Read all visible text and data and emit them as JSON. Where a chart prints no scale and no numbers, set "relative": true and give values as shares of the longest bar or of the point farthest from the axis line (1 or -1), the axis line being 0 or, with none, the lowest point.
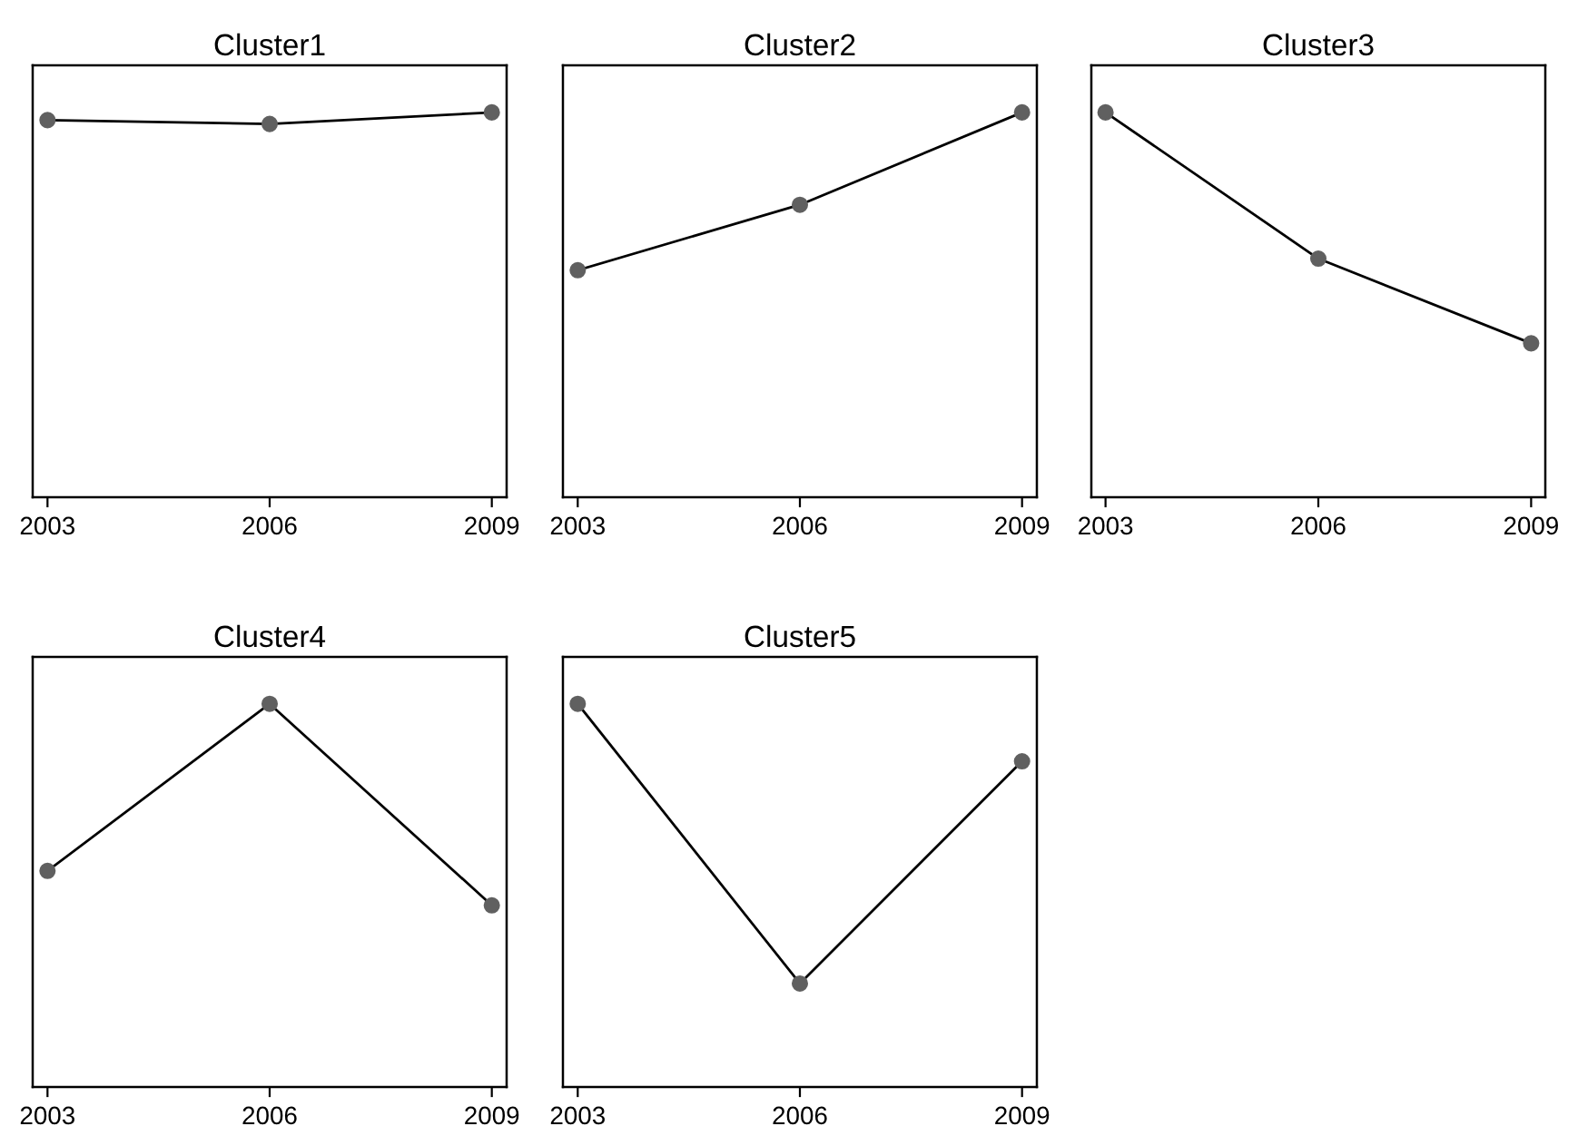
{
  "chart_data": [
    {
      "type": "line",
      "title": "Cluster1",
      "x": [
        2003,
        2006,
        2009
      ],
      "relative": true,
      "xlim": [
        2002.8,
        2009.2
      ],
      "xticks": [
        2003,
        2006,
        2009
      ],
      "tick_labels": "x",
      "marker": "circle",
      "line_style": "solid",
      "grid": false,
      "legend": false,
      "series": [
        {
          "color": "#000000",
          "values": [
            0.98,
            0.97,
            1
          ]
        }
      ]
    },
    {
      "type": "line",
      "title": "Cluster2",
      "x": [
        2003,
        2006,
        2009
      ],
      "relative": true,
      "xlim": [
        2002.8,
        2009.2
      ],
      "xticks": [
        2003,
        2006,
        2009
      ],
      "tick_labels": "x",
      "marker": "circle",
      "line_style": "solid",
      "grid": false,
      "legend": false,
      "series": [
        {
          "color": "#000000",
          "values": [
            0.59,
            0.76,
            1
          ]
        }
      ]
    },
    {
      "type": "line",
      "title": "Cluster3",
      "x": [
        2003,
        2006,
        2009
      ],
      "relative": true,
      "xlim": [
        2002.8,
        2009.2
      ],
      "xticks": [
        2003,
        2006,
        2009
      ],
      "tick_labels": "x",
      "marker": "circle",
      "line_style": "solid",
      "grid": false,
      "legend": false,
      "series": [
        {
          "color": "#000000",
          "values": [
            1,
            0.62,
            0.4
          ]
        }
      ]
    },
    {
      "type": "line",
      "title": "Cluster4",
      "x": [
        2003,
        2006,
        2009
      ],
      "relative": true,
      "xlim": [
        2002.8,
        2009.2
      ],
      "xticks": [
        2003,
        2006,
        2009
      ],
      "tick_labels": "x",
      "marker": "circle",
      "line_style": "solid",
      "grid": false,
      "legend": false,
      "series": [
        {
          "color": "#000000",
          "values": [
            0.564,
            1,
            0.474
          ]
        }
      ]
    },
    {
      "type": "line",
      "title": "Cluster5",
      "x": [
        2003,
        2006,
        2009
      ],
      "relative": true,
      "xlim": [
        2002.8,
        2009.2
      ],
      "xticks": [
        2003,
        2006,
        2009
      ],
      "tick_labels": "x",
      "marker": "circle",
      "line_style": "solid",
      "grid": false,
      "legend": false,
      "series": [
        {
          "color": "#000000",
          "values": [
            1,
            0.27,
            0.85
          ]
        }
      ]
    }
  ]
}
